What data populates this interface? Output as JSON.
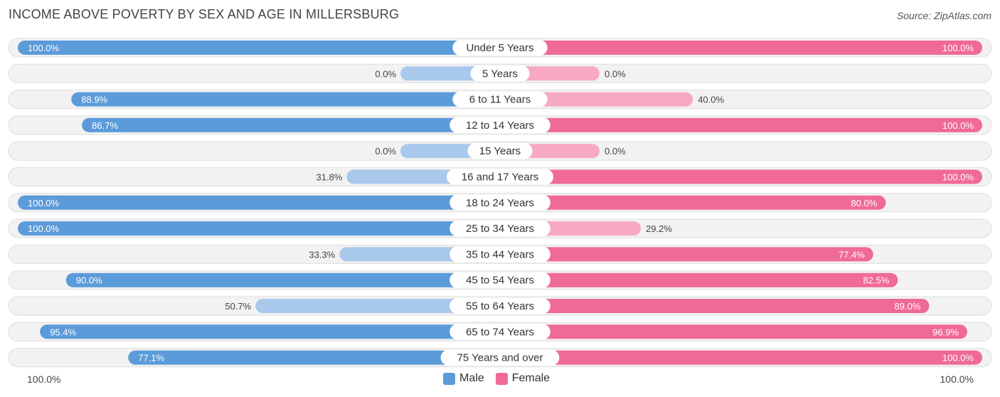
{
  "header": {
    "title": "INCOME ABOVE POVERTY BY SEX AND AGE IN MILLERSBURG",
    "source": "Source: ZipAtlas.com"
  },
  "legend": {
    "male_label": "Male",
    "female_label": "Female"
  },
  "axis": {
    "left_label": "100.0%",
    "right_label": "100.0%"
  },
  "colors": {
    "male_strong": "#5b9bd9",
    "male_light": "#a9c9ec",
    "female_strong": "#f06a96",
    "female_light": "#f7a9c3"
  },
  "chart_data": {
    "type": "bar",
    "orientation": "horizontal-diverging",
    "title": "INCOME ABOVE POVERTY BY SEX AND AGE IN MILLERSBURG",
    "xlim": [
      0,
      100
    ],
    "categories": [
      "Under 5 Years",
      "5 Years",
      "6 to 11 Years",
      "12 to 14 Years",
      "15 Years",
      "16 and 17 Years",
      "18 to 24 Years",
      "25 to 34 Years",
      "35 to 44 Years",
      "45 to 54 Years",
      "55 to 64 Years",
      "65 to 74 Years",
      "75 Years and over"
    ],
    "series": [
      {
        "name": "Male",
        "values": [
          100.0,
          0.0,
          88.9,
          86.7,
          0.0,
          31.8,
          100.0,
          100.0,
          33.3,
          90.0,
          50.7,
          95.4,
          77.1
        ],
        "labels": [
          "100.0%",
          "0.0%",
          "88.9%",
          "86.7%",
          "0.0%",
          "31.8%",
          "100.0%",
          "100.0%",
          "33.3%",
          "90.0%",
          "50.7%",
          "95.4%",
          "77.1%"
        ]
      },
      {
        "name": "Female",
        "values": [
          100.0,
          0.0,
          40.0,
          100.0,
          0.0,
          100.0,
          80.0,
          29.2,
          77.4,
          82.5,
          89.0,
          96.9,
          100.0
        ],
        "labels": [
          "100.0%",
          "0.0%",
          "40.0%",
          "100.0%",
          "0.0%",
          "100.0%",
          "80.0%",
          "29.2%",
          "77.4%",
          "82.5%",
          "89.0%",
          "96.9%",
          "100.0%"
        ]
      }
    ]
  }
}
